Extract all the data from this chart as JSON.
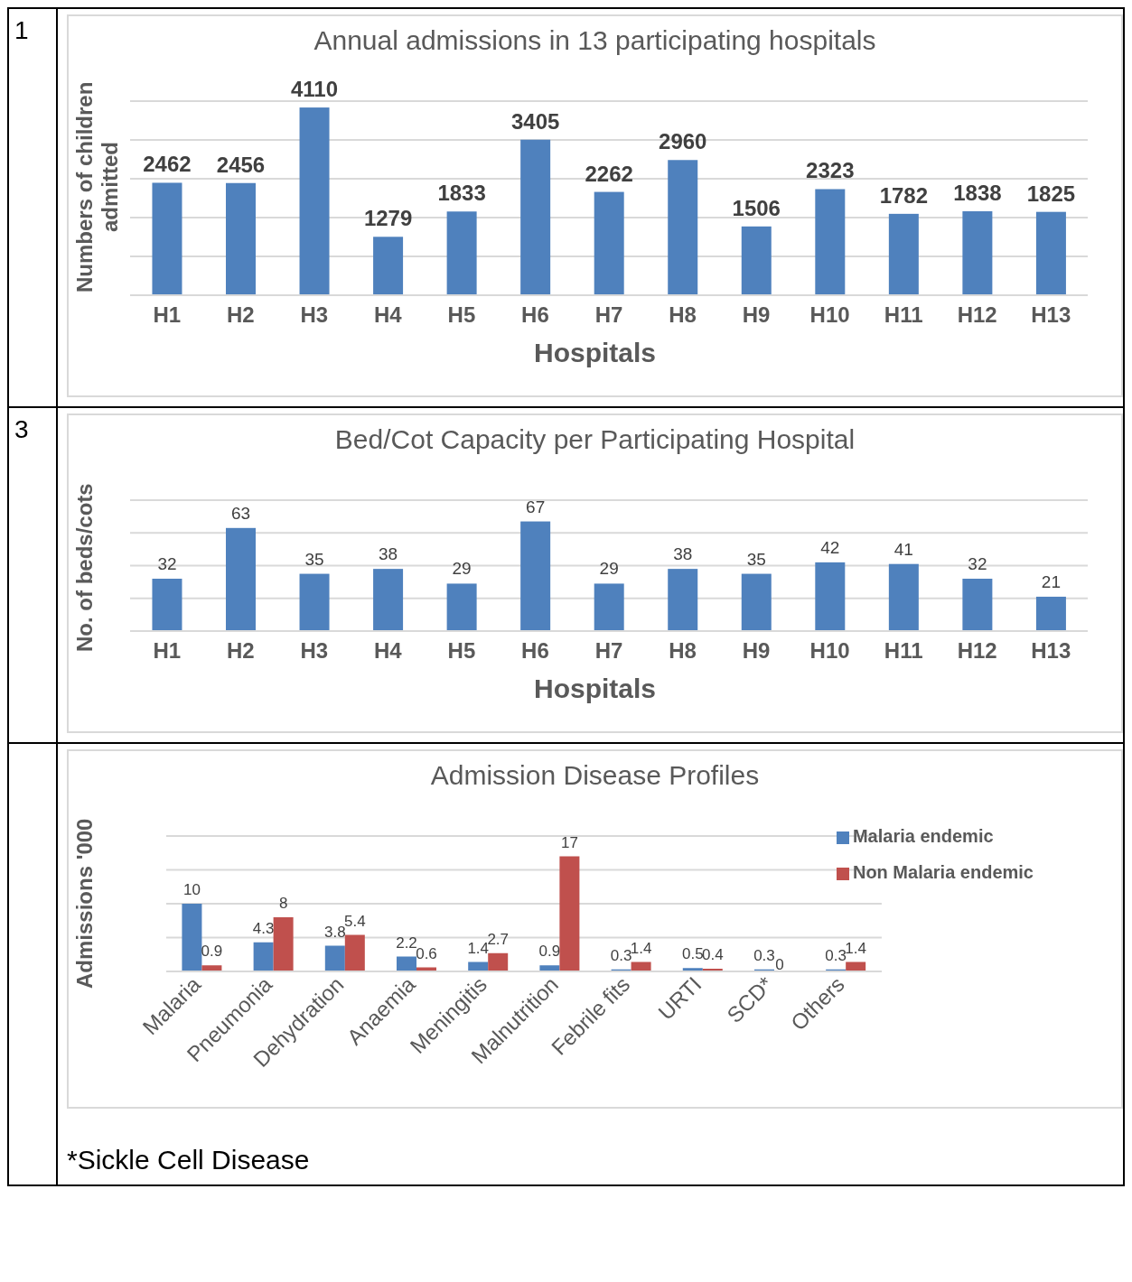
{
  "chart_data": [
    {
      "type": "bar",
      "title": "Annual admissions in 13 participating hospitals",
      "xlabel": "Hospitals",
      "ylabel": "Numbers of children admitted",
      "categories": [
        "H1",
        "H2",
        "H3",
        "H4",
        "H5",
        "H6",
        "H7",
        "H8",
        "H9",
        "H10",
        "H11",
        "H12",
        "H13"
      ],
      "values": [
        2462,
        2456,
        4110,
        1279,
        1833,
        3405,
        2262,
        2960,
        1506,
        2323,
        1782,
        1838,
        1825
      ],
      "color": "#4f81bd",
      "grid": "y",
      "tick_labels": "x",
      "data_labels": true,
      "legend": false,
      "annotations": [
        "1"
      ]
    },
    {
      "type": "bar",
      "title": "Bed/Cot Capacity per Participating Hospital",
      "xlabel": "Hospitals",
      "ylabel": "No. of  beds/cots",
      "categories": [
        "H1",
        "H2",
        "H3",
        "H4",
        "H5",
        "H6",
        "H7",
        "H8",
        "H9",
        "H10",
        "H11",
        "H12",
        "H13"
      ],
      "values": [
        32,
        63,
        35,
        38,
        29,
        67,
        29,
        38,
        35,
        42,
        41,
        32,
        21
      ],
      "color": "#4f81bd",
      "grid": "y",
      "tick_labels": "x",
      "data_labels": true,
      "legend": false,
      "annotations": [
        "3"
      ]
    },
    {
      "type": "bar",
      "title": "Admission Disease Profiles",
      "ylabel": "Admissions '000",
      "categories": [
        "Malaria",
        "Pneumonia",
        "Dehydration",
        "Anaemia",
        "Meningitis",
        "Malnutrition",
        "Febrile fits",
        "URTI",
        "SCD*",
        "Others"
      ],
      "series": [
        {
          "name": "Malaria endemic",
          "color": "#4f81bd",
          "values": [
            10,
            4.3,
            3.8,
            2.2,
            1.4,
            0.9,
            0.3,
            0.5,
            0.3,
            0.3
          ]
        },
        {
          "name": "Non Malaria endemic",
          "color": "#c0504d",
          "values": [
            0.9,
            8,
            5.4,
            0.6,
            2.7,
            17,
            1.4,
            0.4,
            0,
            1.4
          ]
        }
      ],
      "grid": "y",
      "tick_labels": "x",
      "data_labels": true,
      "legend": "top right",
      "annotations": [
        "*Sickle Cell Disease"
      ]
    }
  ]
}
